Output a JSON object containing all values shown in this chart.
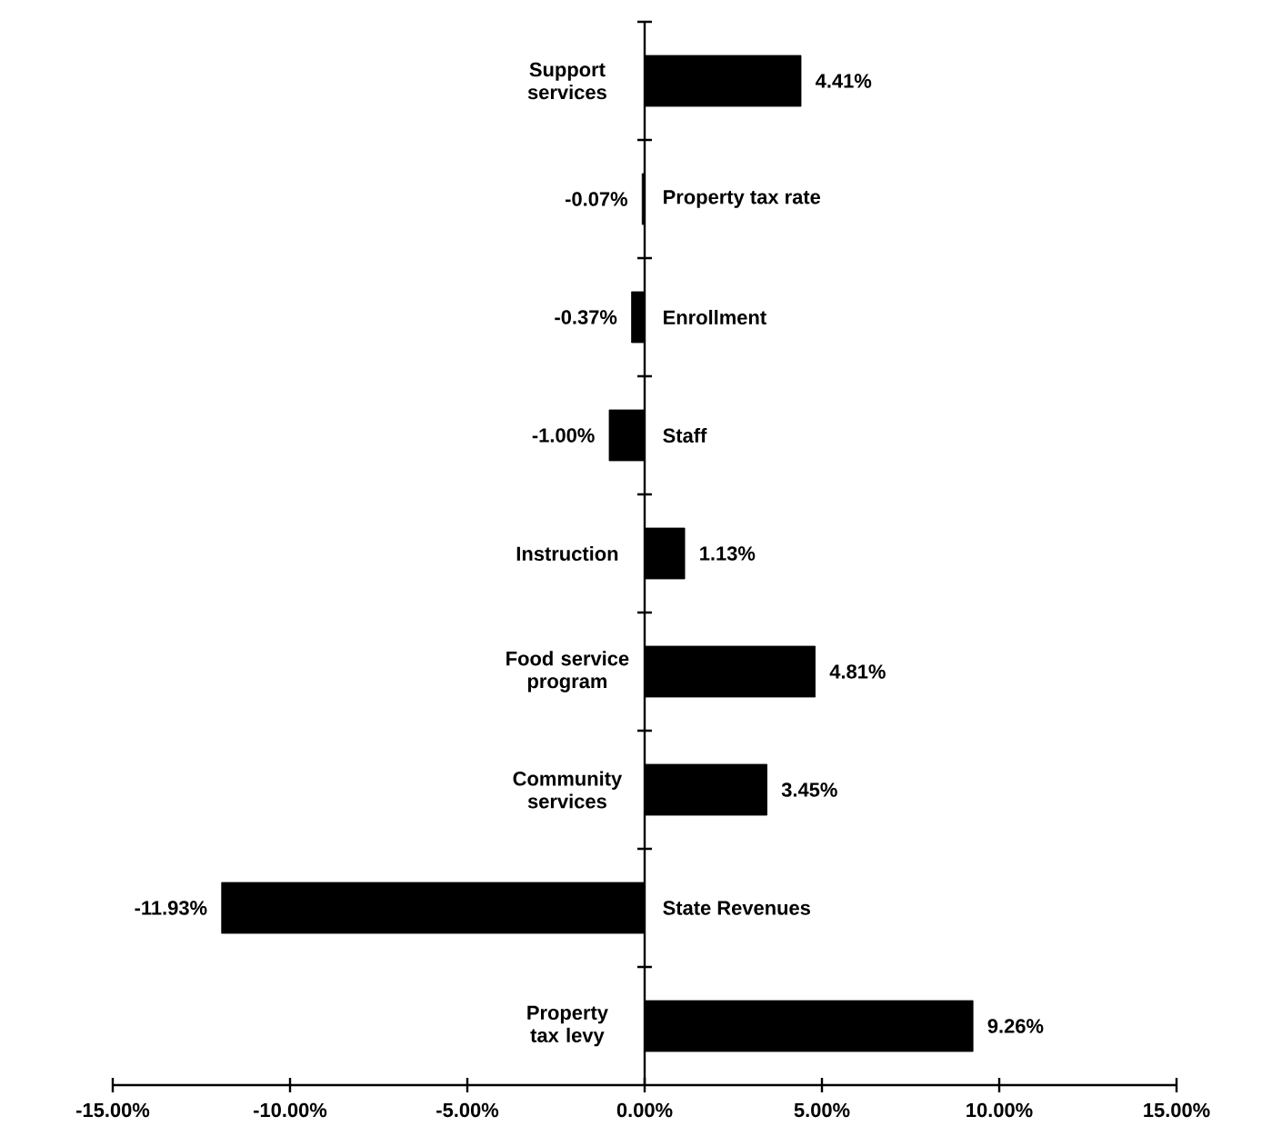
{
  "chart_data": {
    "type": "bar",
    "orientation": "horizontal",
    "categories": [
      "Support services",
      "Property tax rate",
      "Enrollment",
      "Staff",
      "Instruction",
      "Food service program",
      "Community services",
      "State Revenues",
      "Property tax levy"
    ],
    "values": [
      4.41,
      -0.07,
      -0.37,
      -1.0,
      1.13,
      4.81,
      3.45,
      -11.93,
      9.26
    ],
    "value_labels": [
      "4.41%",
      "-0.07%",
      "-0.37%",
      "-1.00%",
      "1.13%",
      "4.81%",
      "3.45%",
      "-11.93%",
      "9.26%"
    ],
    "color": "#000000",
    "xlim": [
      -15,
      15
    ],
    "xticks": [
      {
        "value": -15,
        "label": "-15.00%"
      },
      {
        "value": -10,
        "label": "-10.00%"
      },
      {
        "value": -5,
        "label": "-5.00%"
      },
      {
        "value": 0,
        "label": "0.00%"
      },
      {
        "value": 5,
        "label": "5.00%"
      },
      {
        "value": 10,
        "label": "10.00%"
      },
      {
        "value": 15,
        "label": "15.00%"
      }
    ],
    "grid": false
  }
}
